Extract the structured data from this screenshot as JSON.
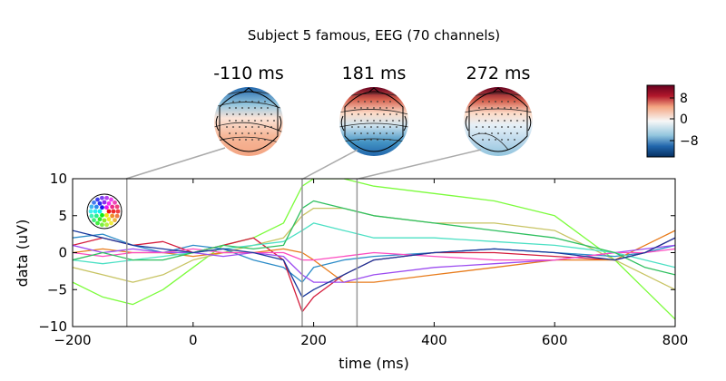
{
  "chart_data": [
    {
      "type": "line",
      "title": "Subject 5 famous, EEG (70 channels)",
      "xlabel": "time (ms)",
      "ylabel": "data (uV)",
      "xlim": [
        -200,
        800
      ],
      "ylim": [
        -10,
        10
      ],
      "xticks": [
        -200,
        0,
        200,
        400,
        600,
        800
      ],
      "yticks": [
        10,
        5,
        0,
        -5,
        -10
      ],
      "xtick_labels": [
        "−200",
        "0",
        "200",
        "400",
        "600",
        "800"
      ],
      "ytick_labels": [
        "10",
        "5",
        "0",
        "−5",
        "−10"
      ],
      "grid": false,
      "n_channels": 70,
      "timepoint_markers": [
        -110,
        181,
        272
      ],
      "representative_channels": [
        {
          "color": "#7cfc3c",
          "x": [
            -200,
            -150,
            -100,
            -50,
            0,
            50,
            100,
            150,
            181,
            200,
            250,
            300,
            400,
            500,
            600,
            700,
            750,
            800
          ],
          "y": [
            -4,
            -6,
            -7,
            -5,
            -2,
            1,
            2,
            4,
            9,
            10,
            10,
            9,
            8,
            7,
            5,
            -1,
            -5,
            -9
          ]
        },
        {
          "color": "#c8c464",
          "x": [
            -200,
            -150,
            -100,
            -50,
            0,
            50,
            100,
            150,
            181,
            200,
            250,
            300,
            400,
            500,
            600,
            700,
            750,
            800
          ],
          "y": [
            -2,
            -3,
            -4,
            -3,
            -1,
            0,
            1,
            2,
            5,
            6,
            6,
            5,
            4,
            4,
            3,
            -1,
            -3,
            -5
          ]
        },
        {
          "color": "#2c8cc8",
          "x": [
            -200,
            -150,
            -100,
            -50,
            0,
            50,
            100,
            150,
            181,
            200,
            250,
            300,
            400,
            500,
            600,
            700,
            750,
            800
          ],
          "y": [
            2,
            2.5,
            1,
            0,
            1,
            0.5,
            -1,
            -2,
            -4,
            -2,
            -1,
            -0.5,
            0,
            0.5,
            0,
            -0.5,
            0,
            1
          ]
        },
        {
          "color": "#d41c3c",
          "x": [
            -200,
            -150,
            -100,
            -50,
            0,
            50,
            100,
            150,
            181,
            200,
            250,
            300,
            400,
            500,
            600,
            700,
            750,
            800
          ],
          "y": [
            1,
            2,
            1,
            1.5,
            0,
            1,
            2,
            -1,
            -8,
            -6,
            -3,
            -1,
            0,
            0,
            -0.5,
            -1,
            0,
            2
          ]
        },
        {
          "color": "#e87c1c",
          "x": [
            -200,
            -150,
            -100,
            -50,
            0,
            50,
            100,
            150,
            181,
            200,
            250,
            300,
            400,
            500,
            600,
            700,
            750,
            800
          ],
          "y": [
            0,
            0.5,
            0,
            0,
            -0.5,
            0,
            0,
            0.5,
            0,
            -1,
            -4,
            -4,
            -3,
            -2,
            -1,
            -1,
            1,
            3
          ]
        },
        {
          "color": "#9c4cf0",
          "x": [
            -200,
            -150,
            -100,
            -50,
            0,
            50,
            100,
            150,
            181,
            200,
            250,
            300,
            400,
            500,
            600,
            700,
            750,
            800
          ],
          "y": [
            1,
            0,
            0.5,
            0,
            0,
            -0.5,
            0,
            -0.5,
            -3,
            -4,
            -4,
            -3,
            -2,
            -1.5,
            -1,
            0,
            0.5,
            1
          ]
        },
        {
          "color": "#fc4cc0",
          "x": [
            -200,
            -150,
            -100,
            -50,
            0,
            50,
            100,
            150,
            181,
            200,
            250,
            300,
            400,
            500,
            600,
            700,
            750,
            800
          ],
          "y": [
            0,
            -0.5,
            0,
            0,
            0.5,
            0,
            0,
            0,
            -1,
            -1,
            -0.5,
            0,
            -0.5,
            -1,
            -1,
            0,
            0,
            0.5
          ]
        },
        {
          "color": "#4ce0c4",
          "x": [
            -200,
            -150,
            -100,
            -50,
            0,
            50,
            100,
            150,
            181,
            200,
            250,
            300,
            400,
            500,
            600,
            700,
            750,
            800
          ],
          "y": [
            -1,
            -1.5,
            -1,
            -0.5,
            0,
            0.5,
            1,
            1.5,
            3,
            4,
            3,
            2,
            2,
            1.5,
            1,
            0,
            -1,
            -2
          ]
        },
        {
          "color": "#30c060",
          "x": [
            -200,
            -150,
            -100,
            -50,
            0,
            50,
            100,
            150,
            181,
            200,
            250,
            300,
            400,
            500,
            600,
            700,
            750,
            800
          ],
          "y": [
            -1,
            0,
            -1,
            -1,
            0,
            1,
            0.5,
            1,
            6,
            7,
            6,
            5,
            4,
            3,
            2,
            0,
            -2,
            -3
          ]
        },
        {
          "color": "#18389c",
          "x": [
            -200,
            -150,
            -100,
            -50,
            0,
            50,
            100,
            150,
            181,
            200,
            250,
            300,
            400,
            500,
            600,
            700,
            750,
            800
          ],
          "y": [
            3,
            2,
            1,
            0.5,
            0,
            0.5,
            0,
            -1,
            -6,
            -5,
            -3,
            -1,
            0,
            0.5,
            0,
            -1,
            0,
            2
          ]
        }
      ]
    },
    {
      "type": "heatmap",
      "panel": "topomaps",
      "times": [
        "-110 ms",
        "181 ms",
        "272 ms"
      ],
      "colorbar_ticks": [
        "8",
        "0",
        "−8"
      ],
      "colormap": [
        "#053061",
        "#2166ac",
        "#4393c3",
        "#92c5de",
        "#d1e5f0",
        "#f7f7f7",
        "#fddbc7",
        "#f4a582",
        "#d6604d",
        "#b2182b",
        "#67001f"
      ]
    }
  ]
}
